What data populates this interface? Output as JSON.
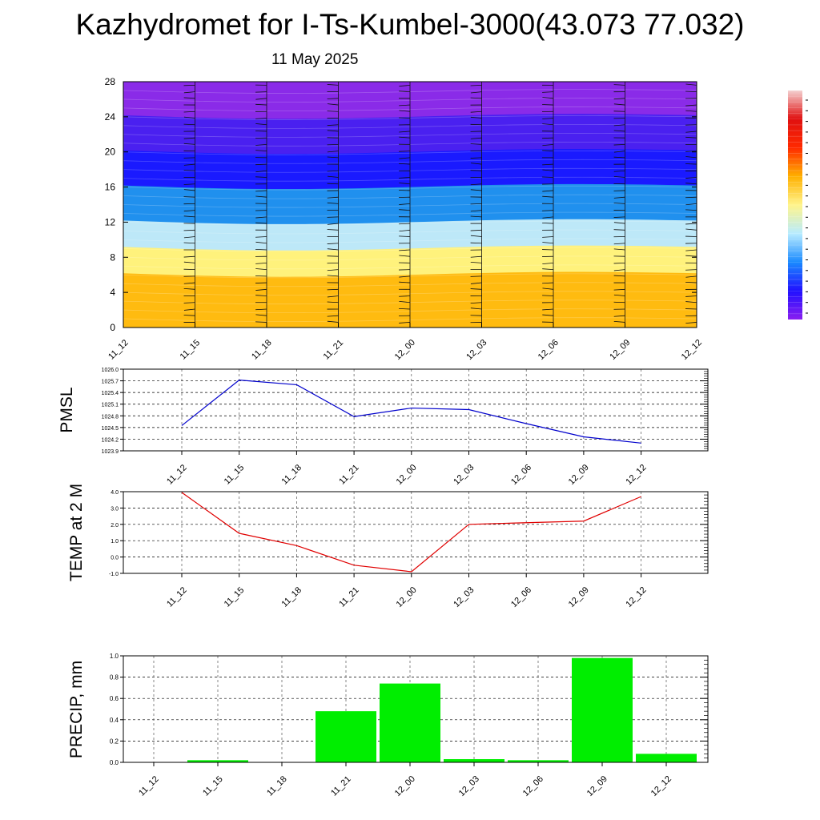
{
  "header": {
    "title": "Kazhydromet for I-Ts-Kumbel-3000(43.073 77.032)",
    "date": "11 May 2025"
  },
  "chart_data": [
    {
      "type": "heatmap",
      "name": "cross-section",
      "x_labels": [
        "11_12",
        "11_15",
        "11_18",
        "11_21",
        "12_00",
        "12_03",
        "12_06",
        "12_09",
        "12_12"
      ],
      "y_ticks": [
        "0",
        "4",
        "8",
        "12",
        "16",
        "20",
        "24",
        "28"
      ],
      "ylim": [
        0,
        28
      ],
      "wind_barbs": true,
      "colorbar_colors": [
        "#8a1ef0",
        "#2010ff",
        "#1a8aff",
        "#b8ecff",
        "#fff48a",
        "#ffb000",
        "#ff2a00",
        "#e01010",
        "#f4d0d0"
      ],
      "color_bands": [
        {
          "from": 24,
          "to": 28,
          "color": "#8a2be8"
        },
        {
          "from": 20,
          "to": 24,
          "color": "#4a20f0"
        },
        {
          "from": 16,
          "to": 20,
          "color": "#1a1aff"
        },
        {
          "from": 12,
          "to": 16,
          "color": "#2090ee"
        },
        {
          "from": 9,
          "to": 12,
          "color": "#bde8f8"
        },
        {
          "from": 6,
          "to": 9,
          "color": "#fff27c"
        },
        {
          "from": 0,
          "to": 6,
          "color": "#ffbb10"
        }
      ]
    },
    {
      "type": "line",
      "ylabel": "PMSL",
      "x_labels": [
        "11_12",
        "11_15",
        "11_18",
        "11_21",
        "12_00",
        "12_03",
        "12_06",
        "12_09",
        "12_12"
      ],
      "y_ticks": [
        "1023.9",
        "1024.2",
        "1024.5",
        "1024.8",
        "1025.1",
        "1025.4",
        "1025.7",
        "1026.0"
      ],
      "ylim": [
        1023.9,
        1026.0
      ],
      "values": [
        1024.55,
        1025.72,
        1025.6,
        1024.78,
        1025.0,
        1024.96,
        1024.6,
        1024.26,
        1024.1
      ],
      "color": "#0000cc",
      "grid": true
    },
    {
      "type": "line",
      "ylabel": "TEMP at 2 M",
      "x_labels": [
        "11_12",
        "11_15",
        "11_18",
        "11_21",
        "12_00",
        "12_03",
        "12_06",
        "12_09",
        "12_12"
      ],
      "y_ticks": [
        "-1.0",
        "0.0",
        "1.0",
        "2.0",
        "3.0",
        "4.0"
      ],
      "ylim": [
        -1.0,
        4.0
      ],
      "values": [
        3.95,
        1.45,
        0.7,
        -0.5,
        -0.9,
        2.0,
        2.1,
        2.2,
        3.7
      ],
      "color": "#e00000",
      "grid": true
    },
    {
      "type": "bar",
      "ylabel": "PRECIP, mm",
      "x_labels": [
        "11_12",
        "11_15",
        "11_18",
        "11_21",
        "12_00",
        "12_03",
        "12_06",
        "12_09",
        "12_12"
      ],
      "y_ticks": [
        "0.0",
        "0.2",
        "0.4",
        "0.6",
        "0.8",
        "1.0"
      ],
      "ylim": [
        0,
        1.0
      ],
      "values": [
        0.0,
        0.02,
        0.0,
        0.48,
        0.74,
        0.03,
        0.02,
        0.98,
        0.08
      ],
      "color": "#00ee00",
      "grid": true
    }
  ]
}
